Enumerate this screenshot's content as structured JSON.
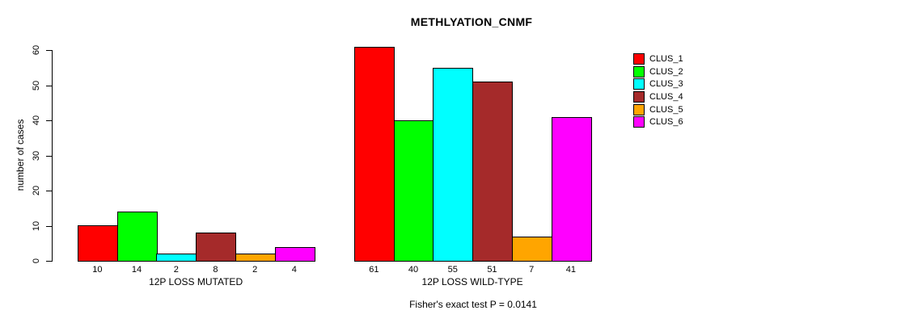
{
  "chart_data": {
    "type": "bar",
    "title": "METHLYATION_CNMF",
    "ylabel": "number of cases",
    "ylim": [
      0,
      60
    ],
    "yticks": [
      0,
      10,
      20,
      30,
      40,
      50,
      60
    ],
    "categories": [
      "12P LOSS MUTATED",
      "12P LOSS WILD-TYPE"
    ],
    "series": [
      {
        "name": "CLUS_1",
        "color": "#FF0000",
        "values": [
          10,
          61
        ]
      },
      {
        "name": "CLUS_2",
        "color": "#00FF00",
        "values": [
          14,
          40
        ]
      },
      {
        "name": "CLUS_3",
        "color": "#00FFFF",
        "values": [
          2,
          55
        ]
      },
      {
        "name": "CLUS_4",
        "color": "#A52A2A",
        "values": [
          8,
          51
        ]
      },
      {
        "name": "CLUS_5",
        "color": "#FFA500",
        "values": [
          2,
          7
        ]
      },
      {
        "name": "CLUS_6",
        "color": "#FF00FF",
        "values": [
          4,
          41
        ]
      }
    ],
    "bar_value_labels": true,
    "grid": false,
    "legend_position": "right-outside",
    "footer": "Fisher's exact test P = 0.0141"
  }
}
